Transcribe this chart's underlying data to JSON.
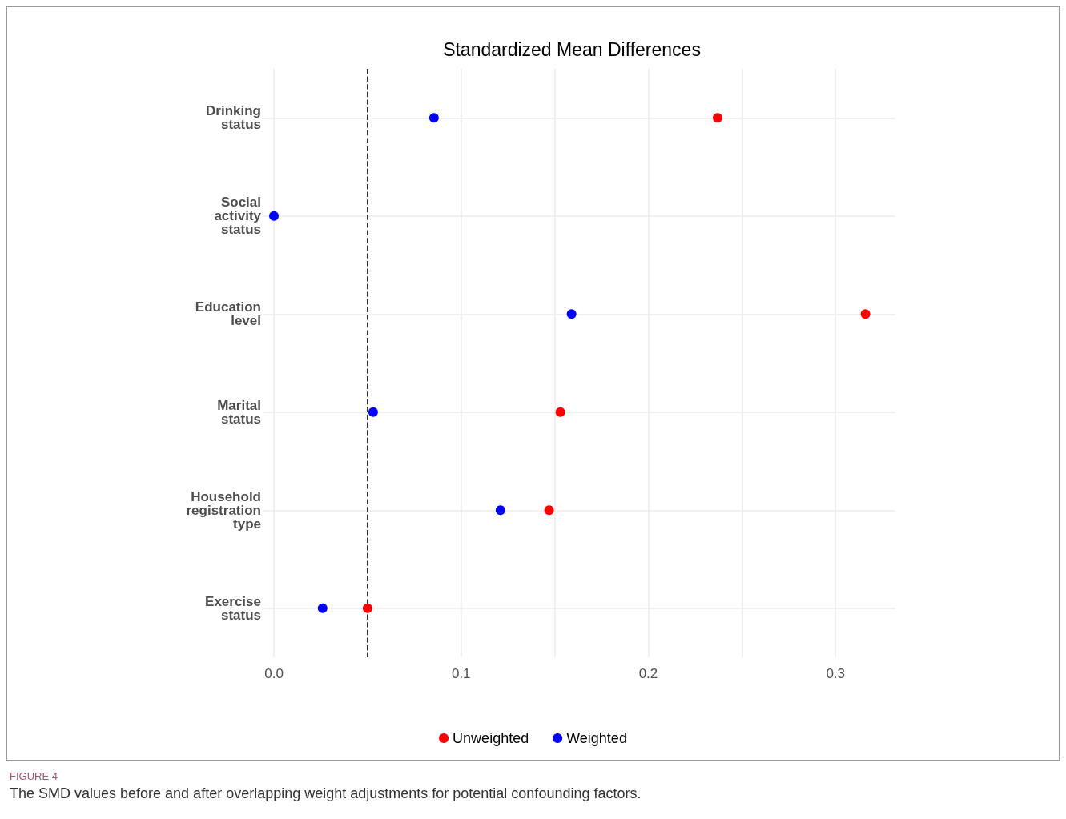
{
  "chart_data": {
    "type": "scatter",
    "title": "Standardized Mean Differences",
    "categories": [
      "Drinking status",
      "Social activity status",
      "Education level",
      "Marital status",
      "Household registration type",
      "Exercise status"
    ],
    "series": [
      {
        "name": "Unweighted",
        "color": "#ff0000",
        "values": [
          0.237,
          null,
          0.316,
          0.153,
          0.147,
          0.05
        ]
      },
      {
        "name": "Weighted",
        "color": "#0000ff",
        "values": [
          0.0855,
          0.0,
          0.159,
          0.053,
          0.121,
          0.026
        ]
      }
    ],
    "orientation": "horizontal",
    "xlim": [
      -0.006,
      0.332
    ],
    "xticks": [
      {
        "value": 0,
        "label": "0.0"
      },
      {
        "value": 0.05,
        "label": null
      },
      0.1,
      {
        "value": 0.15,
        "label": null
      },
      0.2,
      {
        "value": 0.25,
        "label": null
      },
      0.3
    ],
    "ref_lines": [
      {
        "axis": "x",
        "value": 0.05,
        "color": "#000000",
        "line_style": "dashed"
      }
    ],
    "grid": true,
    "legend": "bottom",
    "marker": "circle",
    "annotations": [
      "FIGURE 4",
      "The SMD values before and after overlapping weight adjustments for potential confounding factors."
    ]
  }
}
